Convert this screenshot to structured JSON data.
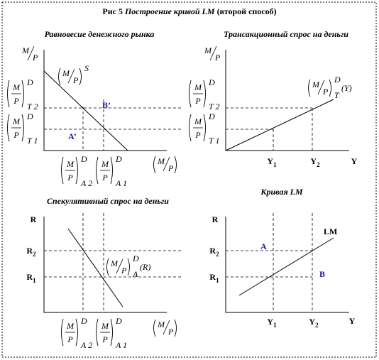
{
  "title": {
    "number": "Рис 5",
    "main": "Построение кривой LM",
    "note": "(второй способ)"
  },
  "panels": [
    {
      "title": "Равновесие денежного рынка",
      "y_axis": {
        "num": "M",
        "den": "P"
      },
      "x_axis": {
        "num": "M",
        "den": "P"
      },
      "curve_label": {
        "num": "M",
        "den": "P",
        "sup": "S"
      },
      "y_levels": [
        {
          "num": "M",
          "den": "P",
          "sup": "D",
          "sub": "T 2"
        },
        {
          "num": "M",
          "den": "P",
          "sup": "D",
          "sub": "T 1"
        }
      ],
      "x_levels": [
        {
          "num": "M",
          "den": "P",
          "sup": "D",
          "sub": "A 2"
        },
        {
          "num": "M",
          "den": "P",
          "sup": "D",
          "sub": "A 1"
        }
      ],
      "points": [
        "B’",
        "A’"
      ]
    },
    {
      "title": "Трансакционный спрос на деньги",
      "y_axis": {
        "num": "M",
        "den": "P"
      },
      "curve_label": {
        "num": "M",
        "den": "P",
        "sup": "D",
        "sub": "T",
        "arg": "(Y)"
      },
      "y_levels": [
        {
          "num": "M",
          "den": "P",
          "sup": "D",
          "sub": "T 2"
        },
        {
          "num": "M",
          "den": "P",
          "sup": "D",
          "sub": "T 1"
        }
      ],
      "x_levels": [
        {
          "base": "Y",
          "sub": "1"
        },
        {
          "base": "Y",
          "sub": "2"
        }
      ],
      "x_axis": "Y"
    },
    {
      "title": "Спекулятивный спрос на деньги",
      "y_axis": "R",
      "y_levels": [
        {
          "base": "R",
          "sub": "2"
        },
        {
          "base": "R",
          "sub": "1"
        }
      ],
      "curve_label": {
        "num": "M",
        "den": "P",
        "sup": "D",
        "sub": "A",
        "arg": "(R)"
      },
      "x_levels": [
        {
          "num": "M",
          "den": "P",
          "sup": "D",
          "sub": "A 2"
        },
        {
          "num": "M",
          "den": "P",
          "sup": "D",
          "sub": "A 1"
        }
      ],
      "x_axis": {
        "num": "M",
        "den": "P"
      }
    },
    {
      "title": "Кривая LM",
      "y_axis": "R",
      "y_levels": [
        {
          "base": "R",
          "sub": "2"
        },
        {
          "base": "R",
          "sub": "1"
        }
      ],
      "curve_label": "LM",
      "points": [
        "A",
        "B"
      ],
      "x_levels": [
        {
          "base": "Y",
          "sub": "1"
        },
        {
          "base": "Y",
          "sub": "2"
        }
      ],
      "x_axis": "Y"
    }
  ]
}
